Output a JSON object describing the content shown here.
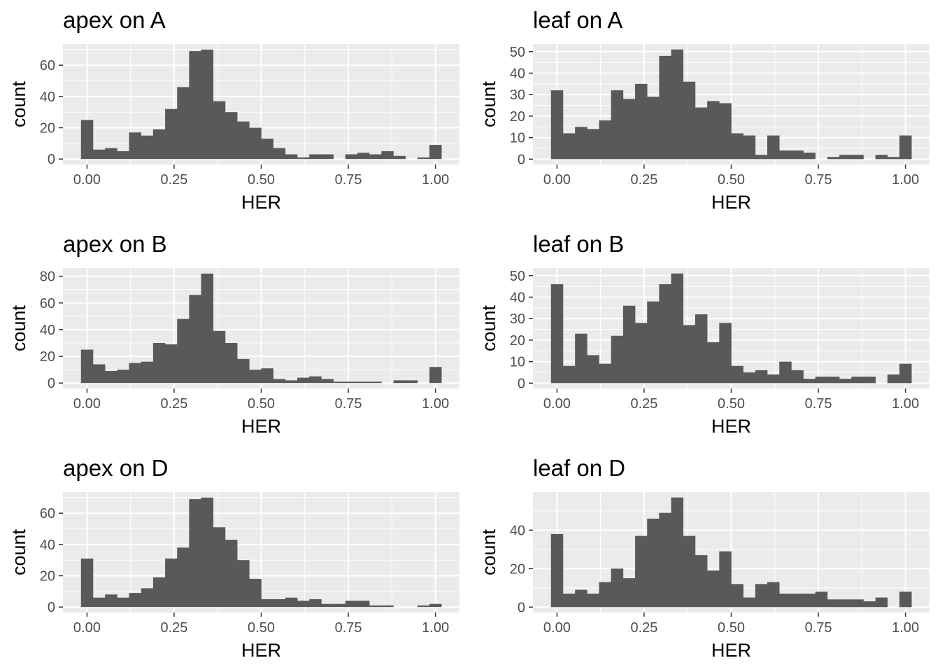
{
  "chart_data": [
    {
      "type": "bar",
      "title": "apex on A",
      "xlabel": "HER",
      "ylabel": "count",
      "bin_width": 0.0345,
      "x": [
        0.0,
        0.0345,
        0.069,
        0.1034,
        0.1379,
        0.1724,
        0.2069,
        0.2414,
        0.2759,
        0.3103,
        0.3448,
        0.3793,
        0.4138,
        0.4483,
        0.4828,
        0.5172,
        0.5517,
        0.5862,
        0.6207,
        0.6552,
        0.6897,
        0.7241,
        0.7586,
        0.7931,
        0.8276,
        0.8621,
        0.8966,
        0.931,
        0.9655,
        1.0
      ],
      "values": [
        25,
        6,
        7,
        5,
        17,
        15,
        19,
        32,
        46,
        69,
        70,
        37,
        30,
        24,
        20,
        13,
        7,
        3,
        1,
        3,
        3,
        0,
        3,
        4,
        3,
        5,
        2,
        0,
        1,
        9
      ],
      "xlim": [
        -0.069,
        1.069
      ],
      "ylim": [
        -3.5,
        73.5
      ],
      "xticks": [
        0.0,
        0.25,
        0.5,
        0.75,
        1.0
      ],
      "xtick_labels": [
        "0.00",
        "0.25",
        "0.50",
        "0.75",
        "1.00"
      ],
      "yticks": [
        0,
        20,
        40,
        60
      ],
      "ytick_labels": [
        "0",
        "20",
        "40",
        "60"
      ]
    },
    {
      "type": "bar",
      "title": "leaf on A",
      "xlabel": "HER",
      "ylabel": "count",
      "bin_width": 0.0345,
      "x": [
        0.0,
        0.0345,
        0.069,
        0.1034,
        0.1379,
        0.1724,
        0.2069,
        0.2414,
        0.2759,
        0.3103,
        0.3448,
        0.3793,
        0.4138,
        0.4483,
        0.4828,
        0.5172,
        0.5517,
        0.5862,
        0.6207,
        0.6552,
        0.6897,
        0.7241,
        0.7586,
        0.7931,
        0.8276,
        0.8621,
        0.8966,
        0.931,
        0.9655,
        1.0
      ],
      "values": [
        32,
        12,
        15,
        14,
        18,
        32,
        28,
        35,
        29,
        48,
        51,
        36,
        24,
        27,
        26,
        12,
        11,
        2,
        11,
        4,
        4,
        3,
        0,
        1,
        2,
        2,
        0,
        2,
        1,
        11
      ],
      "xlim": [
        -0.069,
        1.069
      ],
      "ylim": [
        -2.5,
        53.5
      ],
      "xticks": [
        0.0,
        0.25,
        0.5,
        0.75,
        1.0
      ],
      "xtick_labels": [
        "0.00",
        "0.25",
        "0.50",
        "0.75",
        "1.00"
      ],
      "yticks": [
        0,
        10,
        20,
        30,
        40,
        50
      ],
      "ytick_labels": [
        "0",
        "10",
        "20",
        "30",
        "40",
        "50"
      ]
    },
    {
      "type": "bar",
      "title": "apex on B",
      "xlabel": "HER",
      "ylabel": "count",
      "bin_width": 0.0345,
      "x": [
        0.0,
        0.0345,
        0.069,
        0.1034,
        0.1379,
        0.1724,
        0.2069,
        0.2414,
        0.2759,
        0.3103,
        0.3448,
        0.3793,
        0.4138,
        0.4483,
        0.4828,
        0.5172,
        0.5517,
        0.5862,
        0.6207,
        0.6552,
        0.6897,
        0.7241,
        0.7586,
        0.7931,
        0.8276,
        0.8621,
        0.8966,
        0.931,
        0.9655,
        1.0
      ],
      "values": [
        25,
        14,
        9,
        10,
        15,
        16,
        30,
        29,
        48,
        66,
        82,
        39,
        30,
        18,
        10,
        11,
        3,
        2,
        4,
        5,
        3,
        1,
        1,
        1,
        1,
        0,
        2,
        2,
        0,
        12
      ],
      "xlim": [
        -0.069,
        1.069
      ],
      "ylim": [
        -4.1,
        86.1
      ],
      "xticks": [
        0.0,
        0.25,
        0.5,
        0.75,
        1.0
      ],
      "xtick_labels": [
        "0.00",
        "0.25",
        "0.50",
        "0.75",
        "1.00"
      ],
      "yticks": [
        0,
        20,
        40,
        60,
        80
      ],
      "ytick_labels": [
        "0",
        "20",
        "40",
        "60",
        "80"
      ]
    },
    {
      "type": "bar",
      "title": "leaf on B",
      "xlabel": "HER",
      "ylabel": "count",
      "bin_width": 0.0345,
      "x": [
        0.0,
        0.0345,
        0.069,
        0.1034,
        0.1379,
        0.1724,
        0.2069,
        0.2414,
        0.2759,
        0.3103,
        0.3448,
        0.3793,
        0.4138,
        0.4483,
        0.4828,
        0.5172,
        0.5517,
        0.5862,
        0.6207,
        0.6552,
        0.6897,
        0.7241,
        0.7586,
        0.7931,
        0.8276,
        0.8621,
        0.8966,
        0.931,
        0.9655,
        1.0
      ],
      "values": [
        46,
        8,
        23,
        13,
        9,
        22,
        36,
        28,
        38,
        46,
        51,
        27,
        32,
        19,
        28,
        8,
        5,
        6,
        4,
        10,
        6,
        2,
        3,
        3,
        2,
        3,
        3,
        0,
        4,
        9
      ],
      "xlim": [
        -0.069,
        1.069
      ],
      "ylim": [
        -2.5,
        53.5
      ],
      "xticks": [
        0.0,
        0.25,
        0.5,
        0.75,
        1.0
      ],
      "xtick_labels": [
        "0.00",
        "0.25",
        "0.50",
        "0.75",
        "1.00"
      ],
      "yticks": [
        0,
        10,
        20,
        30,
        40,
        50
      ],
      "ytick_labels": [
        "0",
        "10",
        "20",
        "30",
        "40",
        "50"
      ]
    },
    {
      "type": "bar",
      "title": "apex on D",
      "xlabel": "HER",
      "ylabel": "count",
      "bin_width": 0.0345,
      "x": [
        0.0,
        0.0345,
        0.069,
        0.1034,
        0.1379,
        0.1724,
        0.2069,
        0.2414,
        0.2759,
        0.3103,
        0.3448,
        0.3793,
        0.4138,
        0.4483,
        0.4828,
        0.5172,
        0.5517,
        0.5862,
        0.6207,
        0.6552,
        0.6897,
        0.7241,
        0.7586,
        0.7931,
        0.8276,
        0.8621,
        0.8966,
        0.931,
        0.9655,
        1.0
      ],
      "values": [
        31,
        6,
        8,
        6,
        9,
        12,
        19,
        31,
        38,
        69,
        70,
        51,
        43,
        30,
        18,
        5,
        5,
        6,
        4,
        5,
        2,
        2,
        4,
        4,
        1,
        1,
        0,
        0,
        1,
        2
      ],
      "xlim": [
        -0.069,
        1.069
      ],
      "ylim": [
        -3.5,
        73.5
      ],
      "xticks": [
        0.0,
        0.25,
        0.5,
        0.75,
        1.0
      ],
      "xtick_labels": [
        "0.00",
        "0.25",
        "0.50",
        "0.75",
        "1.00"
      ],
      "yticks": [
        0,
        20,
        40,
        60
      ],
      "ytick_labels": [
        "0",
        "20",
        "40",
        "60"
      ]
    },
    {
      "type": "bar",
      "title": "leaf on D",
      "xlabel": "HER",
      "ylabel": "count",
      "bin_width": 0.0345,
      "x": [
        0.0,
        0.0345,
        0.069,
        0.1034,
        0.1379,
        0.1724,
        0.2069,
        0.2414,
        0.2759,
        0.3103,
        0.3448,
        0.3793,
        0.4138,
        0.4483,
        0.4828,
        0.5172,
        0.5517,
        0.5862,
        0.6207,
        0.6552,
        0.6897,
        0.7241,
        0.7586,
        0.7931,
        0.8276,
        0.8621,
        0.8966,
        0.931,
        0.9655,
        1.0
      ],
      "values": [
        38,
        7,
        9,
        7,
        13,
        20,
        15,
        37,
        46,
        49,
        57,
        37,
        27,
        19,
        29,
        12,
        5,
        12,
        13,
        7,
        7,
        7,
        8,
        4,
        4,
        4,
        3,
        5,
        0,
        8
      ],
      "xlim": [
        -0.069,
        1.069
      ],
      "ylim": [
        -2.8,
        59.8
      ],
      "xticks": [
        0.0,
        0.25,
        0.5,
        0.75,
        1.0
      ],
      "xtick_labels": [
        "0.00",
        "0.25",
        "0.50",
        "0.75",
        "1.00"
      ],
      "yticks": [
        0,
        20,
        40
      ],
      "ytick_labels": [
        "0",
        "20",
        "40"
      ]
    }
  ]
}
